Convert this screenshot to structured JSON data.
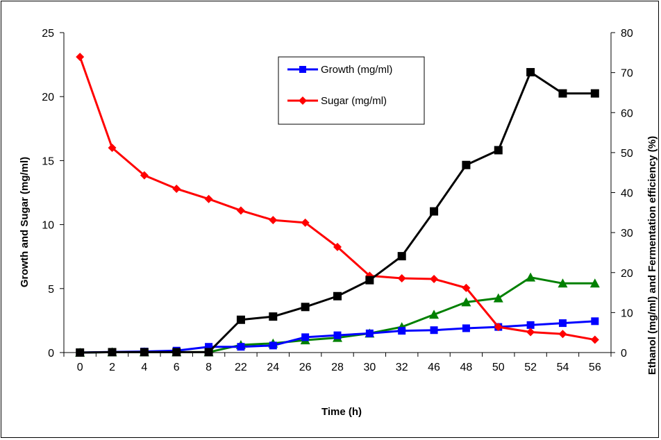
{
  "chart_data": {
    "type": "line",
    "xlabel": "Time (h)",
    "ylabel_left": "Growth and Sugar (mg/ml)",
    "ylabel_right": "Ethanol (mg/ml) and Fermentation efficiency (%)",
    "categories": [
      "0",
      "2",
      "4",
      "6",
      "8",
      "22",
      "24",
      "26",
      "28",
      "30",
      "32",
      "46",
      "48",
      "50",
      "52",
      "54",
      "56"
    ],
    "y_left": {
      "min": 0,
      "max": 25,
      "step": 5
    },
    "y_right": {
      "min": 0,
      "max": 80,
      "step": 10
    },
    "legend_position": "top-center",
    "series": [
      {
        "name": "Growth (mg/ml)",
        "axis": "left",
        "color": "#0000ff",
        "marker": "square",
        "values": [
          0,
          0.05,
          0.08,
          0.15,
          0.45,
          0.45,
          0.55,
          1.2,
          1.35,
          1.5,
          1.7,
          1.75,
          1.9,
          2.0,
          2.15,
          2.3,
          2.45
        ]
      },
      {
        "name": "Sugar (mg/ml)",
        "axis": "left",
        "color": "#ff0000",
        "marker": "diamond",
        "values": [
          23.1,
          16.0,
          13.85,
          12.8,
          12.0,
          11.1,
          10.35,
          10.15,
          8.25,
          6.0,
          5.8,
          5.75,
          5.05,
          2.0,
          1.6,
          1.45,
          1.0
        ]
      },
      {
        "name": "",
        "axis": "right",
        "color": "#000000",
        "marker": "square",
        "values": [
          0,
          0.1,
          0.1,
          0.1,
          0.1,
          8.2,
          9.0,
          11.4,
          14.1,
          18.1,
          24.1,
          35.3,
          46.9,
          50.6,
          70.1,
          64.8,
          64.8
        ]
      },
      {
        "name": "",
        "axis": "right",
        "color": "#008000",
        "marker": "triangle",
        "values": [
          0,
          0.1,
          0.1,
          0.1,
          0.1,
          1.9,
          2.3,
          3.1,
          3.7,
          4.8,
          6.4,
          9.5,
          12.6,
          13.6,
          18.8,
          17.3,
          17.3
        ]
      }
    ]
  }
}
